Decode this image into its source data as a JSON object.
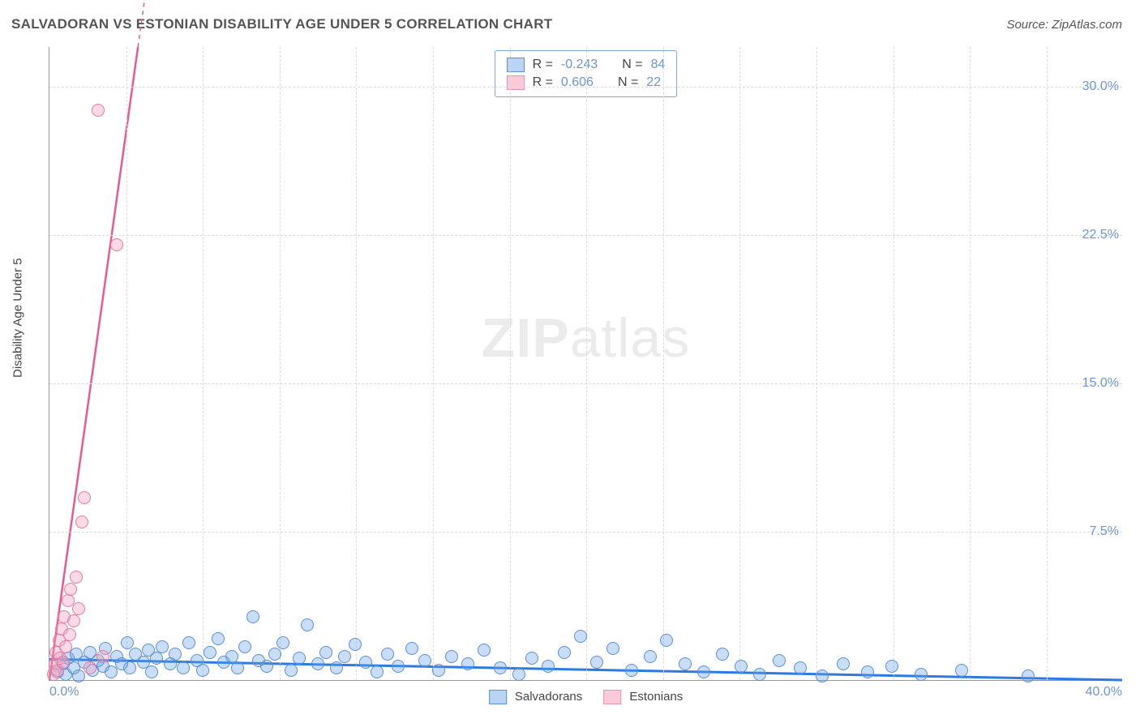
{
  "title": "SALVADORAN VS ESTONIAN DISABILITY AGE UNDER 5 CORRELATION CHART",
  "source": "Source: ZipAtlas.com",
  "ylabel": "Disability Age Under 5",
  "watermark_part1": "ZIP",
  "watermark_part2": "atlas",
  "chart": {
    "type": "scatter",
    "xlim": [
      0,
      40
    ],
    "ylim": [
      0,
      32
    ],
    "xtick_step": 2.86,
    "yticks": [
      7.5,
      15.0,
      22.5,
      30.0
    ],
    "ytick_labels": [
      "7.5%",
      "15.0%",
      "22.5%",
      "30.0%"
    ],
    "origin_label": "0.0%",
    "xmax_label": "40.0%",
    "grid_color": "#dcdcdc",
    "axis_color": "#999999",
    "tick_label_color": "#6b95d4",
    "background_color": "#ffffff",
    "marker_radius": 8,
    "marker_stroke_width": 1.5,
    "series": [
      {
        "name": "Salvadorans",
        "color_fill": "rgba(100,160,230,0.35)",
        "color_stroke": "#5b8fd6",
        "R": "-0.243",
        "N": "84",
        "trend": {
          "x1": 0,
          "y1": 1.05,
          "x2": 40,
          "y2": 0.0,
          "color": "#2c7be5",
          "width": 3
        },
        "points": [
          [
            0.3,
            0.4
          ],
          [
            0.5,
            0.8
          ],
          [
            0.6,
            0.3
          ],
          [
            0.7,
            1.1
          ],
          [
            0.9,
            0.6
          ],
          [
            1.0,
            1.3
          ],
          [
            1.1,
            0.2
          ],
          [
            1.3,
            0.9
          ],
          [
            1.5,
            1.4
          ],
          [
            1.6,
            0.5
          ],
          [
            1.8,
            1.0
          ],
          [
            2.0,
            0.7
          ],
          [
            2.1,
            1.6
          ],
          [
            2.3,
            0.4
          ],
          [
            2.5,
            1.2
          ],
          [
            2.7,
            0.8
          ],
          [
            2.9,
            1.9
          ],
          [
            3.0,
            0.6
          ],
          [
            3.2,
            1.3
          ],
          [
            3.5,
            0.9
          ],
          [
            3.7,
            1.5
          ],
          [
            3.8,
            0.4
          ],
          [
            4.0,
            1.1
          ],
          [
            4.2,
            1.7
          ],
          [
            4.5,
            0.8
          ],
          [
            4.7,
            1.3
          ],
          [
            5.0,
            0.6
          ],
          [
            5.2,
            1.9
          ],
          [
            5.5,
            1.0
          ],
          [
            5.7,
            0.5
          ],
          [
            6.0,
            1.4
          ],
          [
            6.3,
            2.1
          ],
          [
            6.5,
            0.9
          ],
          [
            6.8,
            1.2
          ],
          [
            7.0,
            0.6
          ],
          [
            7.3,
            1.7
          ],
          [
            7.6,
            3.2
          ],
          [
            7.8,
            1.0
          ],
          [
            8.1,
            0.7
          ],
          [
            8.4,
            1.3
          ],
          [
            8.7,
            1.9
          ],
          [
            9.0,
            0.5
          ],
          [
            9.3,
            1.1
          ],
          [
            9.6,
            2.8
          ],
          [
            10.0,
            0.8
          ],
          [
            10.3,
            1.4
          ],
          [
            10.7,
            0.6
          ],
          [
            11.0,
            1.2
          ],
          [
            11.4,
            1.8
          ],
          [
            11.8,
            0.9
          ],
          [
            12.2,
            0.4
          ],
          [
            12.6,
            1.3
          ],
          [
            13.0,
            0.7
          ],
          [
            13.5,
            1.6
          ],
          [
            14.0,
            1.0
          ],
          [
            14.5,
            0.5
          ],
          [
            15.0,
            1.2
          ],
          [
            15.6,
            0.8
          ],
          [
            16.2,
            1.5
          ],
          [
            16.8,
            0.6
          ],
          [
            17.5,
            0.3
          ],
          [
            18.0,
            1.1
          ],
          [
            18.6,
            0.7
          ],
          [
            19.2,
            1.4
          ],
          [
            19.8,
            2.2
          ],
          [
            20.4,
            0.9
          ],
          [
            21.0,
            1.6
          ],
          [
            21.7,
            0.5
          ],
          [
            22.4,
            1.2
          ],
          [
            23.0,
            2.0
          ],
          [
            23.7,
            0.8
          ],
          [
            24.4,
            0.4
          ],
          [
            25.1,
            1.3
          ],
          [
            25.8,
            0.7
          ],
          [
            26.5,
            0.3
          ],
          [
            27.2,
            1.0
          ],
          [
            28.0,
            0.6
          ],
          [
            28.8,
            0.2
          ],
          [
            29.6,
            0.8
          ],
          [
            30.5,
            0.4
          ],
          [
            31.4,
            0.7
          ],
          [
            32.5,
            0.3
          ],
          [
            34.0,
            0.5
          ],
          [
            36.5,
            0.2
          ]
        ]
      },
      {
        "name": "Estonians",
        "color_fill": "rgba(245,160,190,0.40)",
        "color_stroke": "#e77aa0",
        "R": "0.606",
        "N": "22",
        "trend": {
          "x1": 0,
          "y1": 0,
          "x2": 3.3,
          "y2": 32,
          "color": "#ea5a8f",
          "width": 2.5,
          "dash_extend_x": 5.0
        },
        "points": [
          [
            0.15,
            0.3
          ],
          [
            0.2,
            0.8
          ],
          [
            0.25,
            1.4
          ],
          [
            0.3,
            0.5
          ],
          [
            0.35,
            2.0
          ],
          [
            0.4,
            1.1
          ],
          [
            0.45,
            2.6
          ],
          [
            0.5,
            0.9
          ],
          [
            0.55,
            3.2
          ],
          [
            0.6,
            1.7
          ],
          [
            0.7,
            4.0
          ],
          [
            0.75,
            2.3
          ],
          [
            0.8,
            4.6
          ],
          [
            0.9,
            3.0
          ],
          [
            1.0,
            5.2
          ],
          [
            1.1,
            3.6
          ],
          [
            1.2,
            8.0
          ],
          [
            1.3,
            9.2
          ],
          [
            1.5,
            0.6
          ],
          [
            2.0,
            1.2
          ],
          [
            2.5,
            22.0
          ],
          [
            1.8,
            28.8
          ]
        ]
      }
    ],
    "legend_top": {
      "border_color": "#7aa7e0",
      "rows": [
        {
          "swatch": "blue",
          "r_label": "R =",
          "r_val": "-0.243",
          "n_label": "N =",
          "n_val": "84"
        },
        {
          "swatch": "pink",
          "r_label": "R =",
          "r_val": " 0.606",
          "n_label": "N =",
          "n_val": "22"
        }
      ]
    },
    "legend_bottom": [
      {
        "swatch": "blue",
        "label": "Salvadorans"
      },
      {
        "swatch": "pink",
        "label": "Estonians"
      }
    ]
  }
}
